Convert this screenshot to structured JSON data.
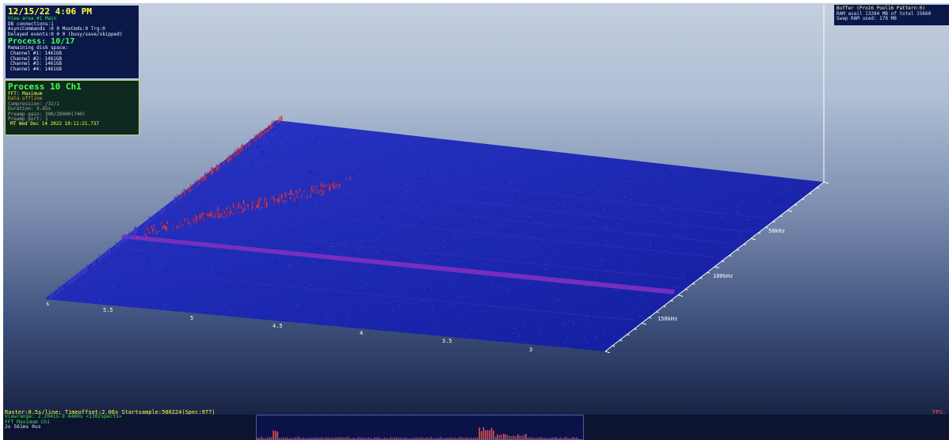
{
  "info_panel": {
    "datetime": "12/15/22 4:06 PM",
    "view_area": "View area #1 Main",
    "db_connections": "DB connections:1",
    "async_commands": "AsyncCommands :0 0 MuxCmds:0 Trg:0",
    "delayed_events": "Delayed events:0 0 0 (busy/save/skipped)",
    "process": "Process: 10/17",
    "remaining_disk": "Remaining disk space:",
    "channels": [
      "Channel #1: 1461GB",
      "Channel #2: 1461GB",
      "Channel #3: 1461GB",
      "Channel #4: 1461GB"
    ]
  },
  "process_panel": {
    "title": "Process 10 Ch1",
    "fft": "FFT: Maximum",
    "data_status": "Data offline",
    "compression": "Compression: /32/1",
    "duration": "Duration: 9.65s",
    "preamp_gain": "Preamp gain: 300/28000(740)",
    "preamp_port": "Preamp port: 1",
    "timestamp": "MT Wed Dec 14 2022 10:11:21.737"
  },
  "buffer_panel": {
    "buffer": "Buffer (Pro16 Pool16 Pattern:0)",
    "ram": "RAM avail 13284 MB of total 15660",
    "swap": "Swap RAM used: 178 MB"
  },
  "plot": {
    "time_labels": [
      "s",
      "5.5",
      "5",
      "4.5",
      "4",
      "3.5",
      "3"
    ],
    "freq_labels": [
      "50kHz",
      "100kHz",
      "150kHz"
    ]
  },
  "status": {
    "line": "Raster:0.5s/line; Timeoffset:2.06s Startsample:500224(Spec:977)",
    "fps": "FPS:"
  },
  "bottom_info": {
    "viewrange": "Viewrange: 2.2041s-9.6469s <1302spects>",
    "fft": "FFT Maximum Ch1",
    "time": "2s 561ms 0us"
  },
  "colors": {
    "surface_base": "#1c28b8",
    "peak_low": "#c0181a",
    "peak_high": "#ffc040",
    "info_bg": "#0a1848"
  }
}
